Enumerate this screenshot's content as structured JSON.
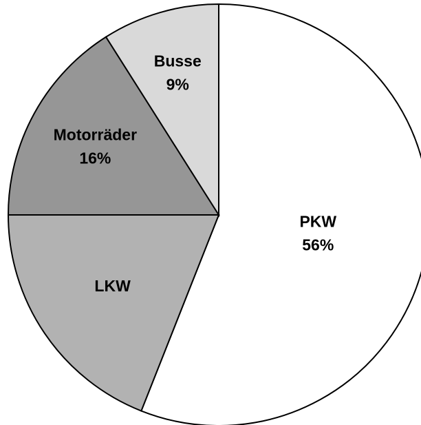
{
  "chart_data": {
    "type": "pie",
    "categories": [
      "PKW",
      "LKW",
      "Motorräder",
      "Busse"
    ],
    "values": [
      56,
      19,
      16,
      9
    ],
    "value_labels": [
      "56%",
      null,
      "16%",
      "9%"
    ],
    "colors": [
      "#ffffff",
      "#b2b2b2",
      "#969696",
      "#d9d9d9"
    ],
    "start_angle": 0,
    "direction": "clockwise"
  }
}
